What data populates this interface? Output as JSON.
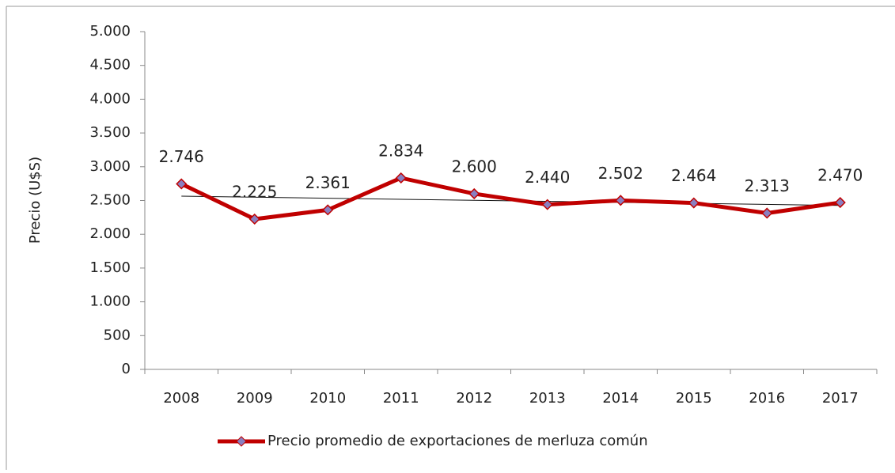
{
  "chart_data": {
    "type": "line",
    "y_label": "Precio (U$S)",
    "categories": [
      "2008",
      "2009",
      "2010",
      "2011",
      "2012",
      "2013",
      "2014",
      "2015",
      "2016",
      "2017"
    ],
    "series": [
      {
        "name": "Precio promedio de exportaciones de merluza común",
        "color": "#c00000",
        "values": [
          2746,
          2225,
          2361,
          2834,
          2600,
          2440,
          2502,
          2464,
          2313,
          2470
        ],
        "value_labels": [
          "2.746",
          "2.225",
          "2.361",
          "2.834",
          "2.600",
          "2.440",
          "2.502",
          "2.464",
          "2.313",
          "2.470"
        ]
      }
    ],
    "ylim": [
      0,
      5000
    ],
    "yticks": [
      0,
      500,
      {
        "value": 1000,
        "label": "1.000"
      },
      {
        "value": 1500,
        "label": "1.500"
      },
      {
        "value": 2000,
        "label": "2.000"
      },
      {
        "value": 2500,
        "label": "2.500"
      },
      {
        "value": 3000,
        "label": "3.000"
      },
      {
        "value": 3500,
        "label": "3.500"
      },
      {
        "value": 4000,
        "label": "4.000"
      },
      {
        "value": 4500,
        "label": "4.500"
      },
      {
        "value": 5000,
        "label": "5.000"
      }
    ],
    "trendline": true,
    "legend": "bottom"
  }
}
